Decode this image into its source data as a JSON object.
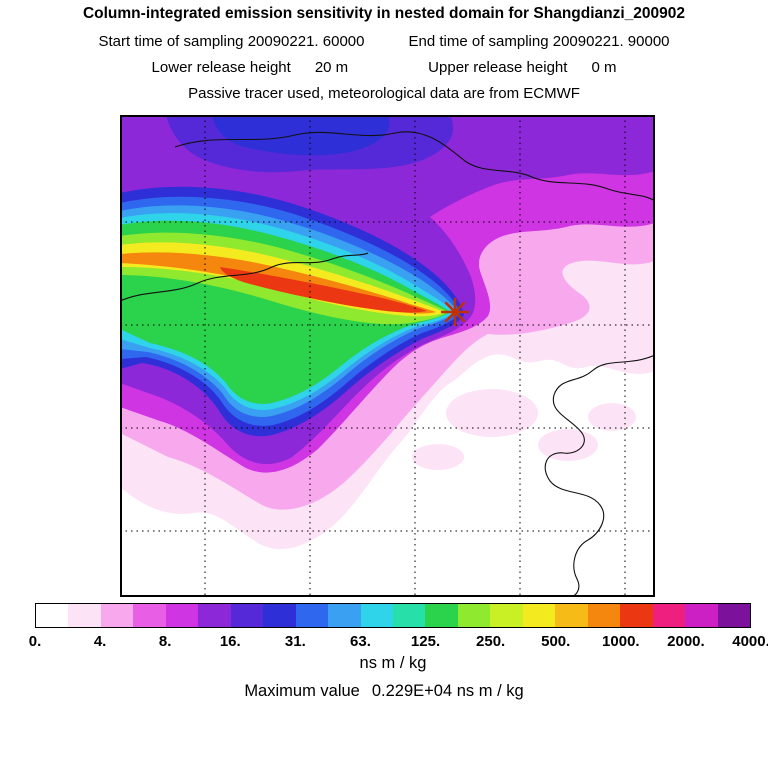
{
  "header": {
    "title": "Column-integrated emission sensitivity in nested domain for Shangdianzi_200902",
    "l2_left": "Start time of sampling 20090221. 60000",
    "l2_right": "End time of sampling 20090221. 90000",
    "l3_left_label": "Lower release height",
    "l3_left_value": "20 m",
    "l3_right_label": "Upper release height",
    "l3_right_value": "0 m",
    "l4": "Passive tracer used, meteorological data are from ECMWF"
  },
  "footer": {
    "units": "ns m / kg",
    "max_label": "Maximum value",
    "max_value": "0.229E+04 ns m / kg"
  },
  "chart_data": {
    "type": "heatmap",
    "title": "Column-integrated emission sensitivity in nested domain for Shangdianzi_200902",
    "station": "Shangdianzi_200902",
    "sampling_start": "20090221. 60000",
    "sampling_end": "20090221. 90000",
    "lower_release_height_m": 20,
    "upper_release_height_m": 0,
    "meteo_note": "Passive tracer used, meteorological data are from ECMWF",
    "units": "ns m / kg",
    "max_value_scientific": "0.229E+04",
    "max_value": 2290,
    "marker_color": "#c23000",
    "grid": {
      "style": "dotted",
      "vertical_lines": 5,
      "horizontal_lines": 4
    },
    "legend_position": "bottom",
    "colorbar": {
      "orientation": "horizontal",
      "tick_labels": [
        "0.",
        "4.",
        "8.",
        "16.",
        "31.",
        "63.",
        "125.",
        "250.",
        "500.",
        "1000.",
        "2000.",
        "4000."
      ],
      "tick_values": [
        0,
        4,
        8,
        16,
        31,
        63,
        125,
        250,
        500,
        1000,
        2000,
        4000
      ],
      "colors": [
        "#ffffff",
        "#fde3f6",
        "#f8a9ee",
        "#e85fe6",
        "#cf35e2",
        "#8d28d8",
        "#5629d8",
        "#2f2fd8",
        "#2f67ee",
        "#3aa1f2",
        "#2fd3ea",
        "#27dfa8",
        "#2bd24c",
        "#8fe92f",
        "#c9ef25",
        "#f4ea20",
        "#f6bb16",
        "#f5860e",
        "#ec3812",
        "#ee1f7e",
        "#cc1fc4",
        "#7c119b"
      ]
    },
    "source_marker": {
      "symbol": "asterisk",
      "map_x_frac": 0.627,
      "map_y_frac": 0.409
    },
    "plume": {
      "direction": "sensitivity plume extends west-southwest from receptor marker",
      "peak_band_levels_ns_m_per_kg": [
        250,
        500,
        1000,
        2290
      ]
    }
  }
}
